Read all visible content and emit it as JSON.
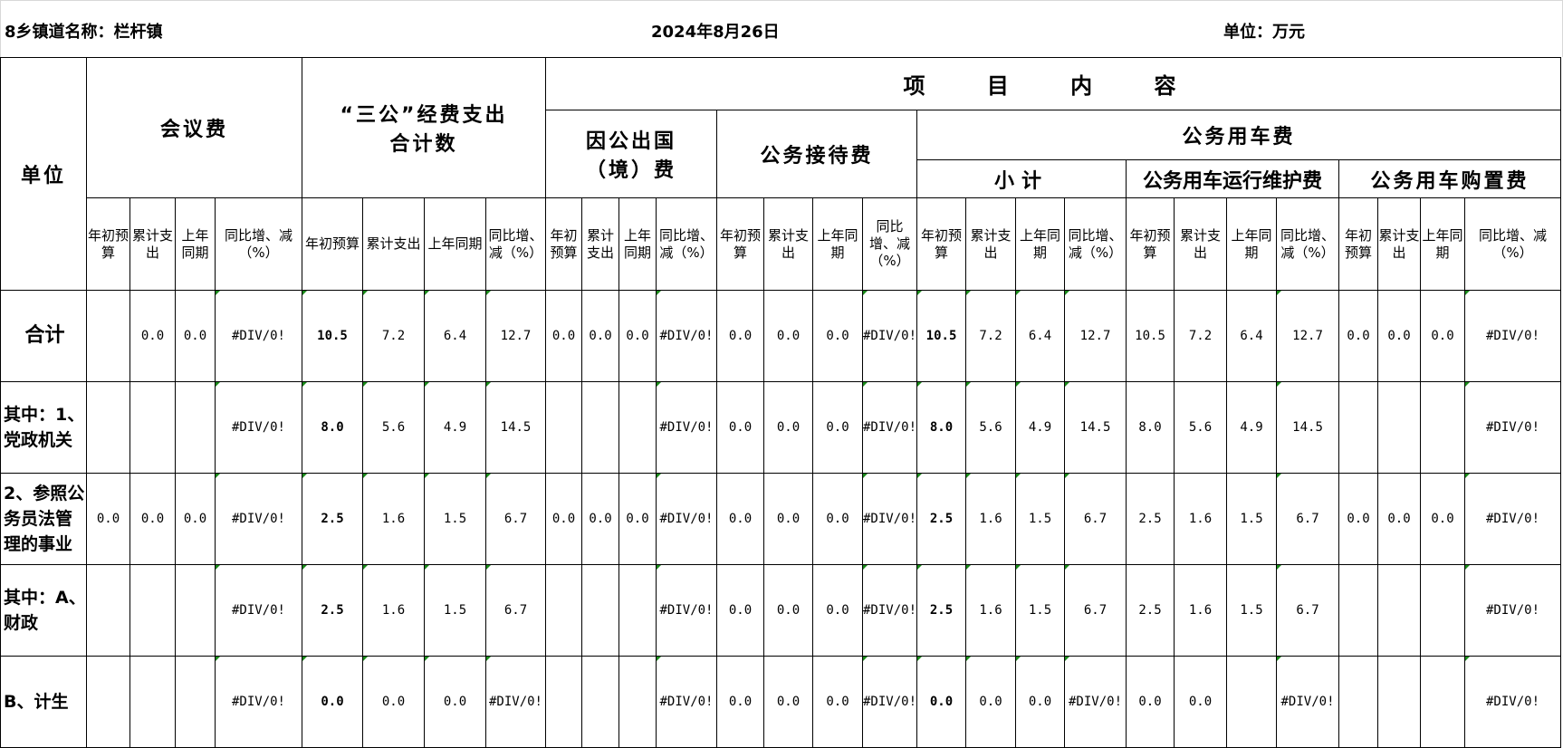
{
  "title": {
    "town": "8乡镇道名称：栏杆镇",
    "date": "2024年8月26日",
    "unit": "单位：万元"
  },
  "header": {
    "unit_col": "单位",
    "meeting": "会议费",
    "sangong_line1": "“三公”经费支出",
    "sangong_line2": "合计数",
    "project": "项 目 内 容",
    "abroad_line1": "因公出国",
    "abroad_line2": "（境）费",
    "reception": "公务接待费",
    "vehicle": "公务用车费",
    "subtotal": "小计",
    "vehicle_maint": "公务用车运行维护费",
    "vehicle_purchase": "公务用车购置费",
    "sub_columns": [
      "年初预算",
      "累计支出",
      "上年同期",
      "同比增、减（%）"
    ]
  },
  "rows": [
    {
      "label": "合计",
      "values": [
        "",
        "0.0",
        "0.0",
        "#DIV/0!",
        "10.5",
        "7.2",
        "6.4",
        "12.7",
        "0.0",
        "0.0",
        "0.0",
        "#DIV/0!",
        "0.0",
        "0.0",
        "0.0",
        "#DIV/0!",
        "10.5",
        "7.2",
        "6.4",
        "12.7",
        "10.5",
        "7.2",
        "6.4",
        "12.7",
        "0.0",
        "0.0",
        "0.0",
        "#DIV/0!"
      ]
    },
    {
      "label": "其中：1、党政机关",
      "values": [
        "",
        "",
        "",
        "#DIV/0!",
        "8.0",
        "5.6",
        "4.9",
        "14.5",
        "",
        "",
        "",
        "#DIV/0!",
        "0.0",
        "0.0",
        "0.0",
        "#DIV/0!",
        "8.0",
        "5.6",
        "4.9",
        "14.5",
        "8.0",
        "5.6",
        "4.9",
        "14.5",
        "",
        "",
        "",
        "#DIV/0!"
      ]
    },
    {
      "label": "2、参照公务员法管理的事业",
      "values": [
        "0.0",
        "0.0",
        "0.0",
        "#DIV/0!",
        "2.5",
        "1.6",
        "1.5",
        "6.7",
        "0.0",
        "0.0",
        "0.0",
        "#DIV/0!",
        "0.0",
        "0.0",
        "0.0",
        "#DIV/0!",
        "2.5",
        "1.6",
        "1.5",
        "6.7",
        "2.5",
        "1.6",
        "1.5",
        "6.7",
        "0.0",
        "0.0",
        "0.0",
        "#DIV/0!"
      ]
    },
    {
      "label": "其中：A、财政",
      "values": [
        "",
        "",
        "",
        "#DIV/0!",
        "2.5",
        "1.6",
        "1.5",
        "6.7",
        "",
        "",
        "",
        "#DIV/0!",
        "0.0",
        "0.0",
        "0.0",
        "#DIV/0!",
        "2.5",
        "1.6",
        "1.5",
        "6.7",
        "2.5",
        "1.6",
        "1.5",
        "6.7",
        "",
        "",
        "",
        "#DIV/0!"
      ]
    },
    {
      "label": "B、计生",
      "values": [
        "",
        "",
        "",
        "#DIV/0!",
        "0.0",
        "0.0",
        "0.0",
        "#DIV/0!",
        "",
        "",
        "",
        "#DIV/0!",
        "0.0",
        "0.0",
        "0.0",
        "#DIV/0!",
        "0.0",
        "0.0",
        "0.0",
        "#DIV/0!",
        "0.0",
        "0.0",
        "",
        "#DIV/0!",
        "",
        "",
        "",
        "#DIV/0!"
      ]
    }
  ],
  "colors": {
    "border": "#000000",
    "comment_marker": "#1a8a1a"
  }
}
